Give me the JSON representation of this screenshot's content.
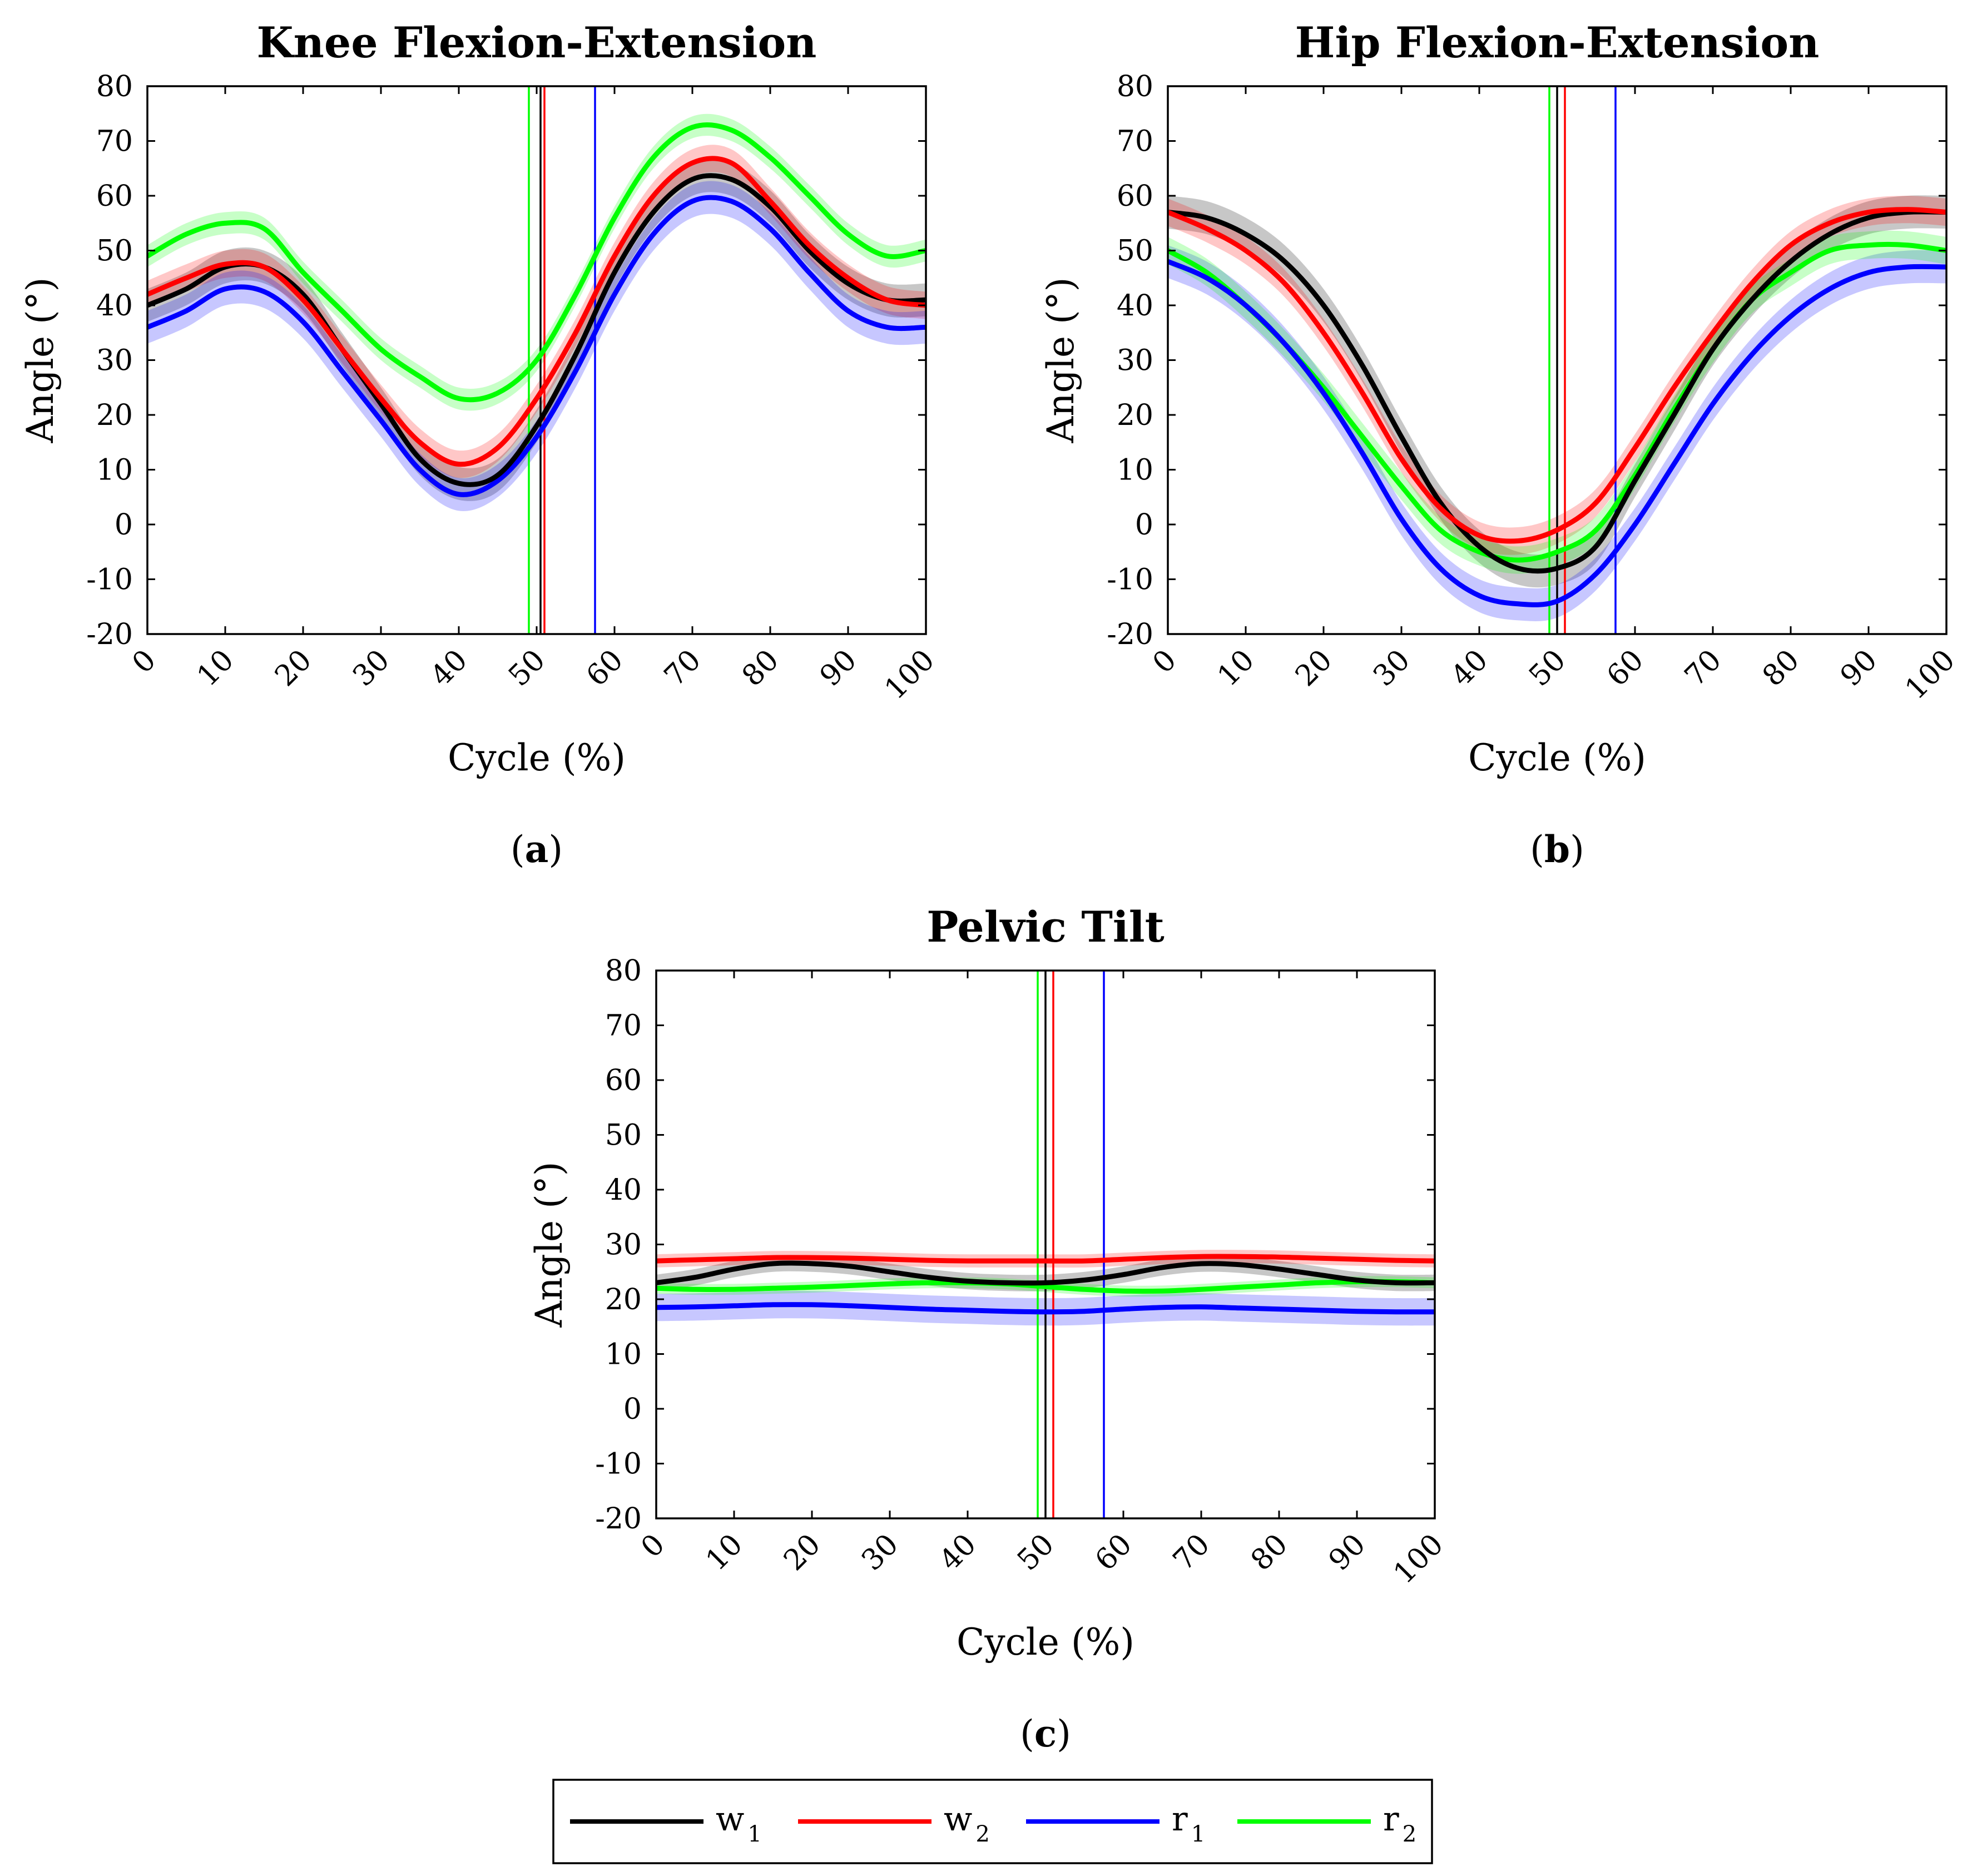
{
  "chart_data": [
    {
      "id": "a",
      "type": "line",
      "title": "Knee Flexion-Extension",
      "panel_label": "a",
      "xlabel": "Cycle (%)",
      "ylabel": "Angle (°)",
      "xlim": [
        0,
        100
      ],
      "ylim": [
        -20,
        80
      ],
      "xticks": [
        "0",
        "10",
        "20",
        "30",
        "40",
        "50",
        "60",
        "70",
        "80",
        "90",
        "100"
      ],
      "yticks": [
        "80",
        "70",
        "60",
        "50",
        "40",
        "30",
        "20",
        "10",
        "0",
        "-10",
        "-20"
      ],
      "x": [
        0,
        5,
        10,
        15,
        20,
        25,
        30,
        35,
        40,
        45,
        50,
        55,
        60,
        65,
        70,
        75,
        80,
        85,
        90,
        95,
        100
      ],
      "series": [
        {
          "name": "w1",
          "color": "#000000",
          "values": [
            40,
            43,
            47,
            47,
            42,
            32,
            22,
            12,
            7.5,
            9,
            18,
            31,
            46,
            57,
            63,
            63,
            58,
            50,
            44,
            41,
            41
          ],
          "band": 3
        },
        {
          "name": "w2",
          "color": "#ff0000",
          "values": [
            42,
            45,
            47.5,
            47,
            41,
            32,
            23,
            15,
            11,
            14,
            23,
            35,
            49,
            60,
            66,
            66,
            59,
            51,
            45,
            41,
            40
          ],
          "band": 2.5
        },
        {
          "name": "r1",
          "color": "#0000ff",
          "values": [
            36,
            39,
            43,
            42.5,
            37,
            28,
            19,
            10,
            5.5,
            8,
            16,
            28,
            42,
            53,
            59,
            59,
            54,
            46,
            39,
            36,
            36
          ],
          "band": 3
        },
        {
          "name": "r2",
          "color": "#00ff00",
          "values": [
            49,
            53,
            55,
            54,
            46,
            39,
            32,
            27,
            23,
            24,
            30,
            42,
            56,
            67,
            72.5,
            72,
            67,
            60,
            53,
            49,
            50
          ],
          "band": 2
        }
      ],
      "vlines": [
        {
          "name": "w1",
          "color": "#000000",
          "x": 50.5
        },
        {
          "name": "w2",
          "color": "#ff0000",
          "x": 51
        },
        {
          "name": "r1",
          "color": "#0000ff",
          "x": 57.5
        },
        {
          "name": "r2",
          "color": "#00ff00",
          "x": 49
        }
      ]
    },
    {
      "id": "b",
      "type": "line",
      "title": "Hip Flexion-Extension",
      "panel_label": "b",
      "xlabel": "Cycle (%)",
      "ylabel": "Angle (°)",
      "xlim": [
        0,
        100
      ],
      "ylim": [
        -20,
        80
      ],
      "xticks": [
        "0",
        "10",
        "20",
        "30",
        "40",
        "50",
        "60",
        "70",
        "80",
        "90",
        "100"
      ],
      "yticks": [
        "80",
        "70",
        "60",
        "50",
        "40",
        "30",
        "20",
        "10",
        "0",
        "-10",
        "-20"
      ],
      "x": [
        0,
        5,
        10,
        15,
        20,
        25,
        30,
        35,
        40,
        45,
        50,
        55,
        60,
        65,
        70,
        75,
        80,
        85,
        90,
        95,
        100
      ],
      "series": [
        {
          "name": "w1",
          "color": "#000000",
          "values": [
            57,
            56,
            53,
            48,
            40,
            29,
            16,
            4,
            -4,
            -8,
            -8,
            -4,
            8,
            20,
            32,
            41,
            48,
            53,
            56,
            57,
            57
          ],
          "band": 3
        },
        {
          "name": "w2",
          "color": "#ff0000",
          "values": [
            57,
            54,
            50,
            44,
            35,
            24,
            12,
            3,
            -2,
            -3,
            -1,
            4,
            14,
            25,
            35,
            44,
            51,
            55,
            57,
            57.5,
            57
          ],
          "band": 2.5
        },
        {
          "name": "r1",
          "color": "#0000ff",
          "values": [
            48,
            45,
            40,
            33,
            24,
            13,
            1,
            -8,
            -13,
            -14.5,
            -14,
            -9,
            0,
            11,
            22,
            31,
            38,
            43,
            46,
            47,
            47
          ],
          "band": 3
        },
        {
          "name": "r2",
          "color": "#00ff00",
          "values": [
            50,
            46,
            40,
            33,
            25,
            16,
            7,
            -1,
            -5,
            -6.5,
            -5,
            -1,
            9,
            21,
            32,
            41,
            46,
            50,
            51,
            51,
            50
          ],
          "band": 2.5
        }
      ],
      "vlines": [
        {
          "name": "w1",
          "color": "#000000",
          "x": 50
        },
        {
          "name": "w2",
          "color": "#ff0000",
          "x": 51
        },
        {
          "name": "r1",
          "color": "#0000ff",
          "x": 57.5
        },
        {
          "name": "r2",
          "color": "#00ff00",
          "x": 49
        }
      ]
    },
    {
      "id": "c",
      "type": "line",
      "title": "Pelvic Tilt",
      "panel_label": "c",
      "xlabel": "Cycle (%)",
      "ylabel": "Angle (°)",
      "xlim": [
        0,
        100
      ],
      "ylim": [
        -20,
        80
      ],
      "xticks": [
        "0",
        "10",
        "20",
        "30",
        "40",
        "50",
        "60",
        "70",
        "80",
        "90",
        "100"
      ],
      "yticks": [
        "80",
        "70",
        "60",
        "50",
        "40",
        "30",
        "20",
        "10",
        "0",
        "-10",
        "-20"
      ],
      "x": [
        0,
        5,
        10,
        15,
        20,
        25,
        30,
        35,
        40,
        45,
        50,
        55,
        60,
        65,
        70,
        75,
        80,
        85,
        90,
        95,
        100
      ],
      "series": [
        {
          "name": "w1",
          "color": "#000000",
          "values": [
            23,
            24,
            25.5,
            26.5,
            26.5,
            26,
            25,
            24,
            23.3,
            23,
            23,
            23.5,
            24.5,
            25.8,
            26.5,
            26.3,
            25.5,
            24.5,
            23.5,
            23,
            23
          ],
          "band": 1.5
        },
        {
          "name": "w2",
          "color": "#ff0000",
          "values": [
            27,
            27.2,
            27.4,
            27.6,
            27.6,
            27.5,
            27.3,
            27.1,
            27,
            27,
            27,
            27,
            27.3,
            27.6,
            27.8,
            27.8,
            27.7,
            27.5,
            27.3,
            27.1,
            27
          ],
          "band": 1.2
        },
        {
          "name": "r1",
          "color": "#0000ff",
          "values": [
            18.5,
            18.6,
            18.8,
            19,
            19,
            18.8,
            18.5,
            18.2,
            18,
            17.8,
            17.7,
            17.8,
            18.2,
            18.5,
            18.6,
            18.4,
            18.2,
            18,
            17.8,
            17.7,
            17.7
          ],
          "band": 2.5
        },
        {
          "name": "r2",
          "color": "#00ff00",
          "values": [
            22,
            21.8,
            21.8,
            22,
            22.2,
            22.5,
            22.8,
            23,
            23,
            22.8,
            22.3,
            21.8,
            21.5,
            21.5,
            21.8,
            22.2,
            22.6,
            23,
            23.2,
            23.2,
            23
          ],
          "band": 1
        }
      ],
      "vlines": [
        {
          "name": "w1",
          "color": "#000000",
          "x": 50
        },
        {
          "name": "w2",
          "color": "#ff0000",
          "x": 51
        },
        {
          "name": "r1",
          "color": "#0000ff",
          "x": 57.5
        },
        {
          "name": "r2",
          "color": "#00ff00",
          "x": 49
        }
      ]
    }
  ],
  "legend": {
    "placement": "bottom-center",
    "entries": [
      {
        "base": "w",
        "sub": "1",
        "color": "#000000"
      },
      {
        "base": "w",
        "sub": "2",
        "color": "#ff0000"
      },
      {
        "base": "r",
        "sub": "1",
        "color": "#0000ff"
      },
      {
        "base": "r",
        "sub": "2",
        "color": "#00ff00"
      }
    ]
  }
}
